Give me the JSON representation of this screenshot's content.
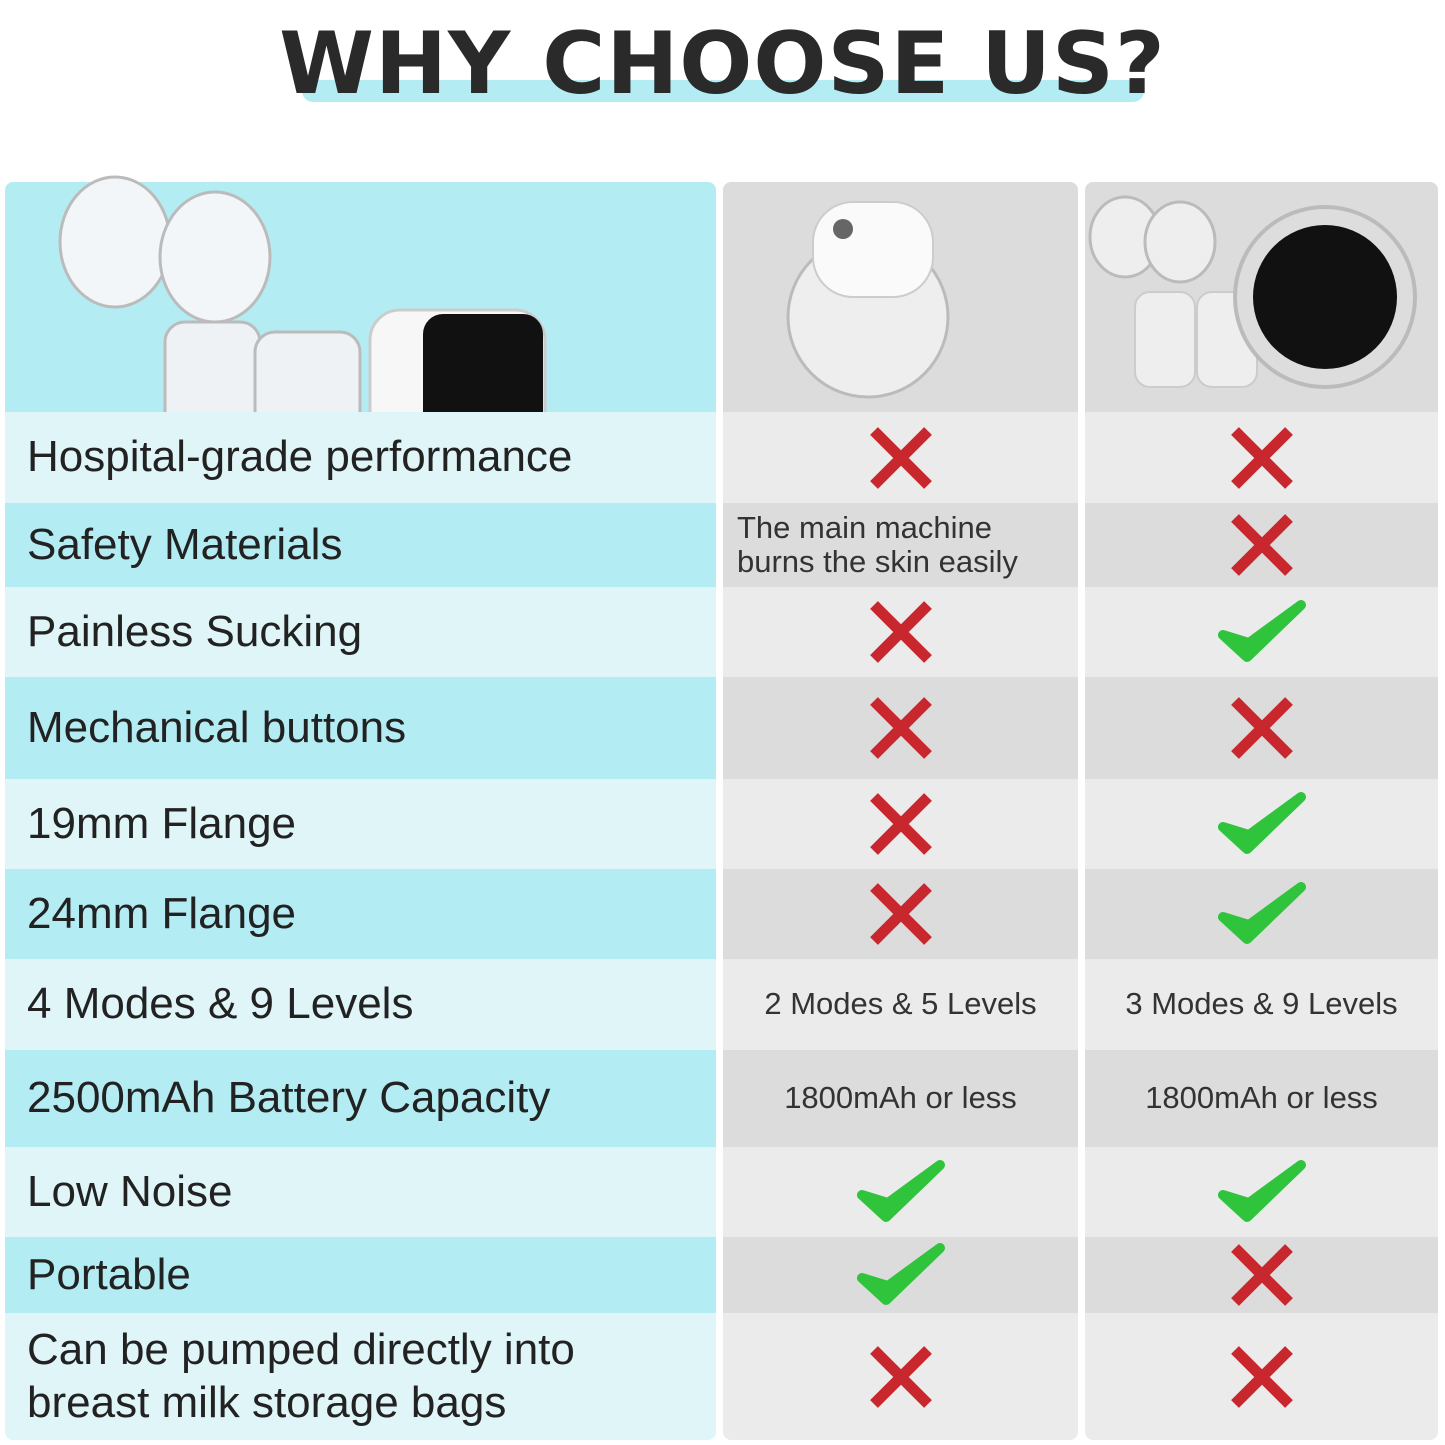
{
  "title": "WHY CHOOSE US?",
  "table": {
    "rows": [
      {
        "feature": "Hospital-grade performance"
      },
      {
        "feature": "Safety Materials",
        "col2": "The main machine burns the skin easily"
      },
      {
        "feature": "Painless Sucking"
      },
      {
        "feature": "Mechanical buttons"
      },
      {
        "feature": "19mm Flange"
      },
      {
        "feature": "24mm Flange"
      },
      {
        "feature": "4 Modes & 9 Levels",
        "col2": "2 Modes & 5 Levels",
        "col3": "3 Modes & 9 Levels"
      },
      {
        "feature": "2500mAh Battery Capacity",
        "col2": "1800mAh or less",
        "col3": "1800mAh or less"
      },
      {
        "feature": "Low Noise"
      },
      {
        "feature": "Portable"
      },
      {
        "feature": "Can be pumped directly into breast milk storage bags"
      }
    ]
  }
}
